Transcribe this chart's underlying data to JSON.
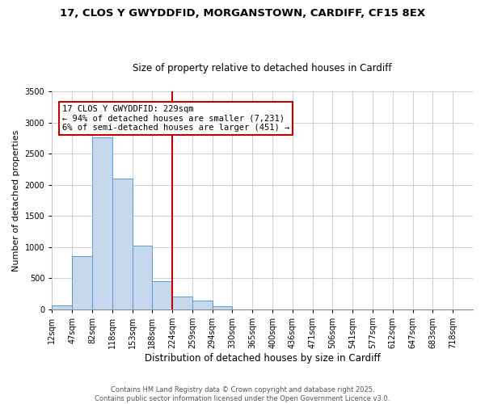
{
  "title": "17, CLOS Y GWYDDFID, MORGANSTOWN, CARDIFF, CF15 8EX",
  "subtitle": "Size of property relative to detached houses in Cardiff",
  "xlabel": "Distribution of detached houses by size in Cardiff",
  "ylabel": "Number of detached properties",
  "bin_labels": [
    "12sqm",
    "47sqm",
    "82sqm",
    "118sqm",
    "153sqm",
    "188sqm",
    "224sqm",
    "259sqm",
    "294sqm",
    "330sqm",
    "365sqm",
    "400sqm",
    "436sqm",
    "471sqm",
    "506sqm",
    "541sqm",
    "577sqm",
    "612sqm",
    "647sqm",
    "683sqm",
    "718sqm"
  ],
  "bar_values": [
    60,
    850,
    2760,
    2100,
    1020,
    450,
    200,
    140,
    55,
    0,
    0,
    0,
    0,
    0,
    0,
    0,
    0,
    0,
    0,
    0,
    0
  ],
  "bar_color": "#c5d8ed",
  "bar_edge_color": "#5b9bd5",
  "vline_x": 6,
  "vline_color": "#c00000",
  "annotation_line1": "17 CLOS Y GWYDDFID: 229sqm",
  "annotation_line2": "← 94% of detached houses are smaller (7,231)",
  "annotation_line3": "6% of semi-detached houses are larger (451) →",
  "annotation_box_color": "#ffffff",
  "annotation_box_edge": "#c00000",
  "ylim": [
    0,
    3500
  ],
  "yticks": [
    0,
    500,
    1000,
    1500,
    2000,
    2500,
    3000,
    3500
  ],
  "footer_line1": "Contains HM Land Registry data © Crown copyright and database right 2025.",
  "footer_line2": "Contains public sector information licensed under the Open Government Licence v3.0.",
  "background_color": "#ffffff",
  "grid_color": "#c8c8c8",
  "title_fontsize": 9.5,
  "subtitle_fontsize": 8.5,
  "xlabel_fontsize": 8.5,
  "ylabel_fontsize": 8,
  "tick_fontsize": 7,
  "annotation_fontsize": 7.5,
  "footer_fontsize": 6
}
